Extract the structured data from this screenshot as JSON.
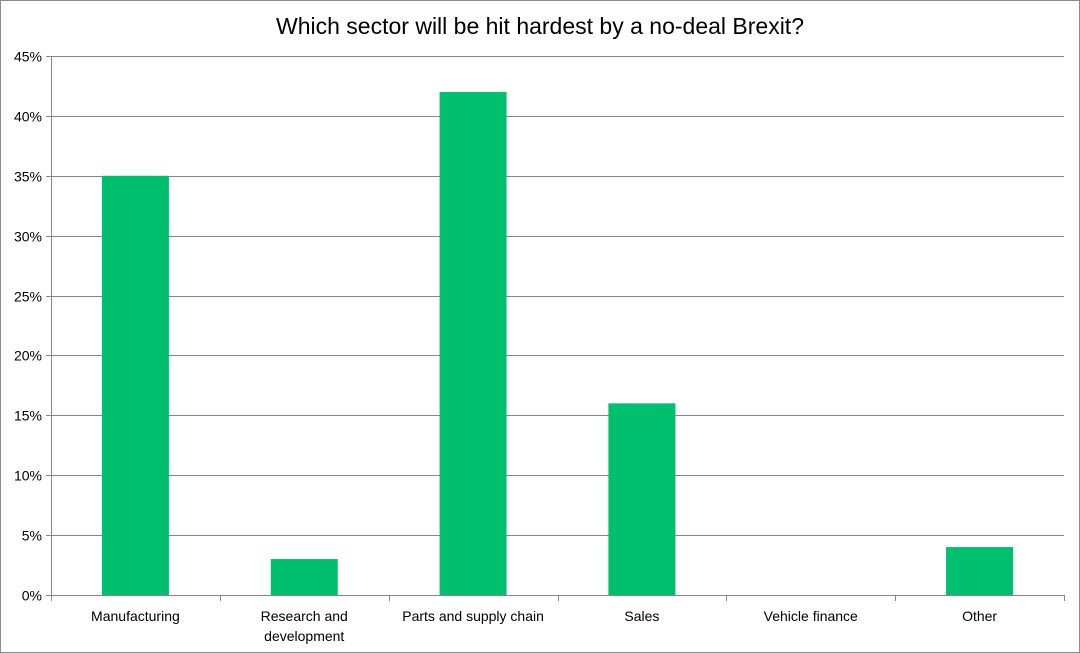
{
  "chart_data": {
    "type": "bar",
    "title": "Which sector will be hit hardest by a no-deal Brexit?",
    "xlabel": "",
    "ylabel": "",
    "categories": [
      [
        "Manufacturing"
      ],
      [
        "Research and",
        "development"
      ],
      [
        "Parts and supply chain"
      ],
      [
        "Sales"
      ],
      [
        "Vehicle finance"
      ],
      [
        "Other"
      ]
    ],
    "values": [
      35,
      3,
      42,
      16,
      0,
      4
    ],
    "ylim": [
      0,
      45
    ],
    "y_ticks": [
      0,
      5,
      10,
      15,
      20,
      25,
      30,
      35,
      40,
      45
    ],
    "y_tick_labels": [
      "0%",
      "5%",
      "10%",
      "15%",
      "20%",
      "25%",
      "30%",
      "35%",
      "40%",
      "45%"
    ],
    "grid": true,
    "legend": "none",
    "colors": {
      "bar": "#00BF6F",
      "grid": "#868686",
      "axis": "#868686"
    }
  }
}
